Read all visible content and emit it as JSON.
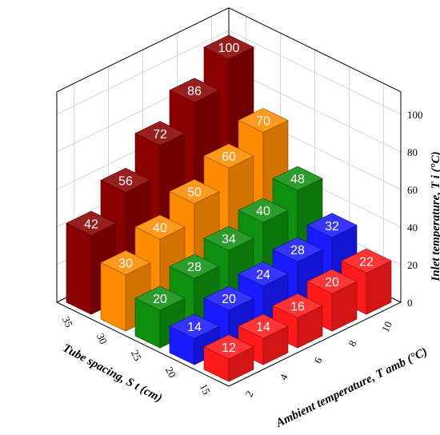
{
  "chart_data": {
    "type": "bar3d",
    "x_axis": {
      "title": "Ambient temperature, T amb (°C)",
      "categories": [
        2,
        4,
        6,
        8,
        10
      ]
    },
    "y_axis": {
      "title": "Tube spacing, S t (cm)",
      "categories": [
        15,
        20,
        25,
        30,
        35
      ]
    },
    "z_axis": {
      "title": "Inlet temperature, T i (°C)",
      "range": [
        0,
        100
      ],
      "ticks": [
        0,
        20,
        40,
        60,
        80,
        100
      ]
    },
    "grid": true,
    "series": [
      {
        "spacing": 15,
        "color": "#ff1a1a",
        "values": [
          12,
          14,
          16,
          20,
          22
        ]
      },
      {
        "spacing": 20,
        "color": "#1a1aff",
        "values": [
          14,
          20,
          24,
          28,
          32
        ]
      },
      {
        "spacing": 25,
        "color": "#0f8f0f",
        "values": [
          20,
          28,
          34,
          40,
          48
        ]
      },
      {
        "spacing": 30,
        "color": "#ff8c00",
        "values": [
          30,
          40,
          50,
          60,
          70
        ]
      },
      {
        "spacing": 35,
        "color": "#8b0000",
        "values": [
          42,
          56,
          72,
          86,
          100
        ]
      }
    ],
    "palette": [
      "#ff1a1a",
      "#1a1aff",
      "#0f8f0f",
      "#ff8c00",
      "#8b0000"
    ]
  }
}
